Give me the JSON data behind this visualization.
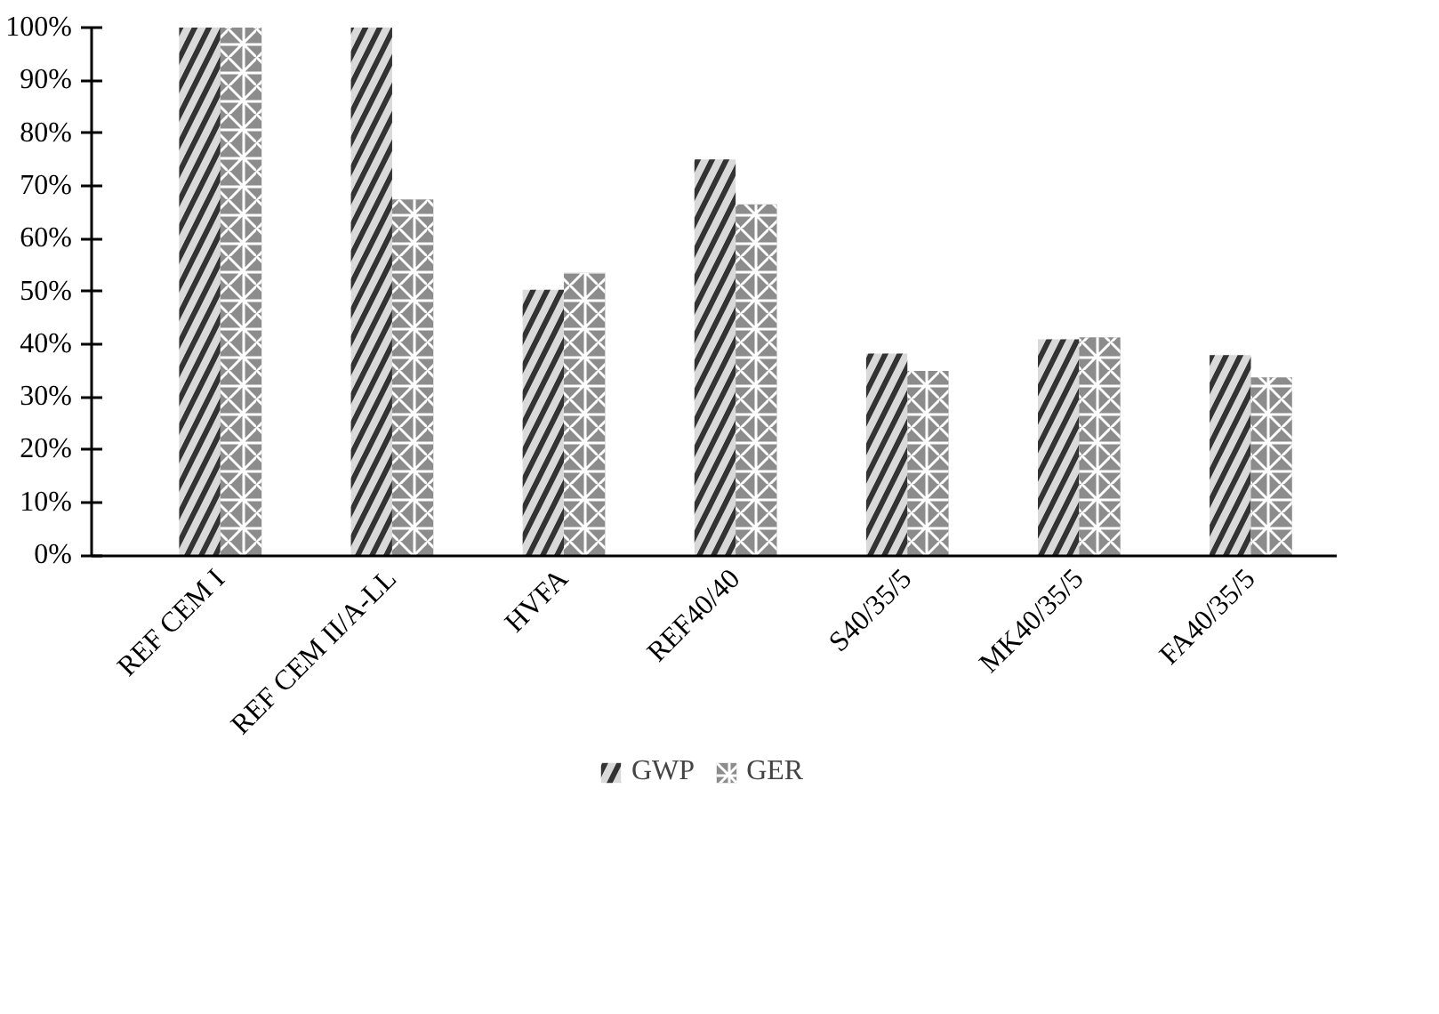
{
  "chart_data": {
    "type": "bar",
    "categories": [
      "REF CEM I",
      "REF CEM II/A-LL",
      "HVFA",
      "REF40/40",
      "S40/35/5",
      "MK40/35/5",
      "FA40/35/5"
    ],
    "series": [
      {
        "name": "GWP",
        "color": "#d9d9d9",
        "values": [
          100,
          100,
          50.3,
          75,
          38.2,
          40.9,
          37.9
        ]
      },
      {
        "name": "GER",
        "color": "#8c8c8c",
        "values": [
          100,
          67.4,
          53.6,
          66.5,
          34.9,
          41.3,
          33.7
        ]
      }
    ],
    "ylim": [
      0,
      100
    ],
    "yticks": [
      {
        "value": 0,
        "label": "0%"
      },
      {
        "value": 10,
        "label": "10%"
      },
      {
        "value": 20,
        "label": "20%"
      },
      {
        "value": 30,
        "label": "30%"
      },
      {
        "value": 40,
        "label": "40%"
      },
      {
        "value": 50,
        "label": "50%"
      },
      {
        "value": 60,
        "label": "60%"
      },
      {
        "value": 70,
        "label": "70%"
      },
      {
        "value": 80,
        "label": "80%"
      },
      {
        "value": 90,
        "label": "90%"
      },
      {
        "value": 100,
        "label": "100%"
      }
    ],
    "grid": false,
    "legend": "bottom"
  }
}
